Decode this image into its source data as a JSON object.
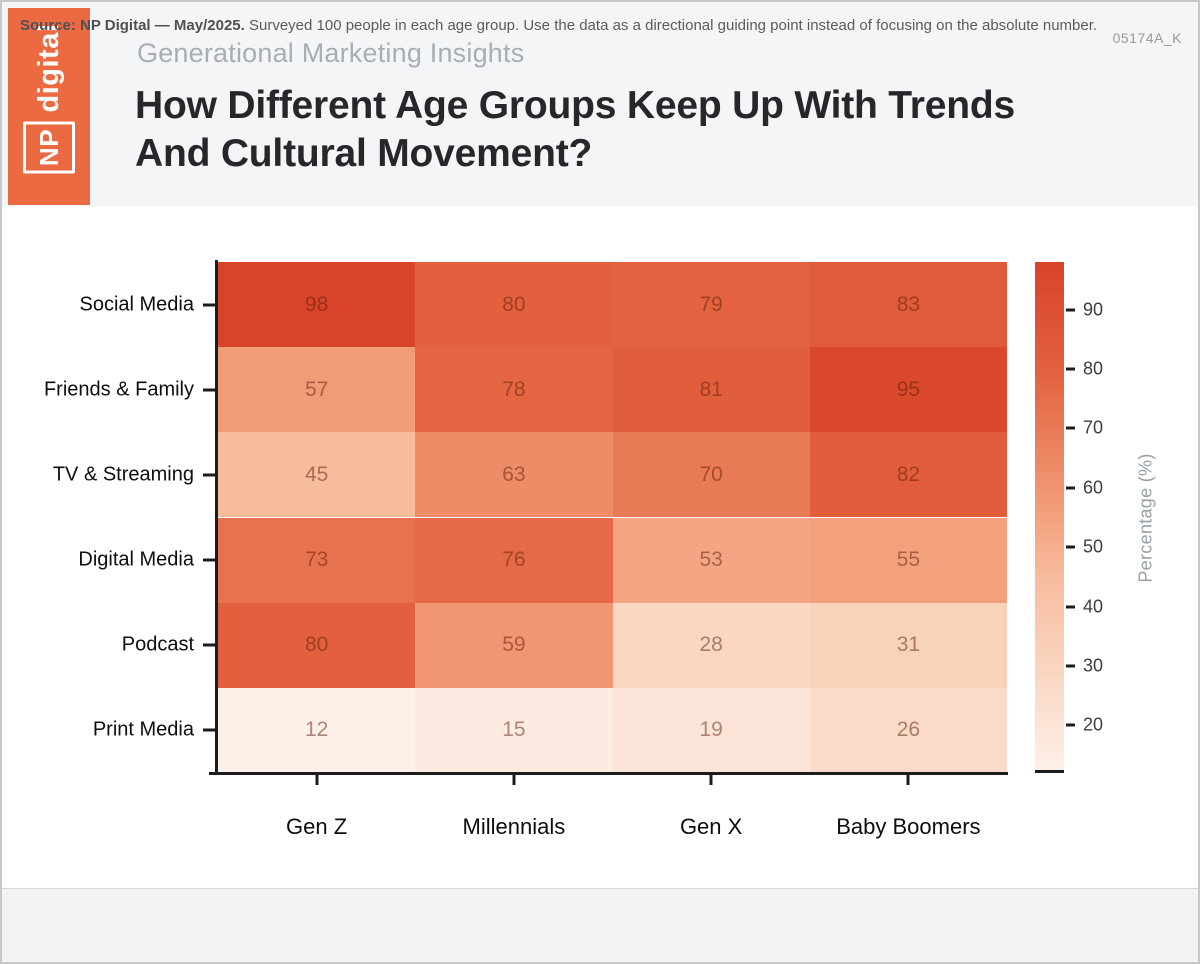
{
  "logo": {
    "np": "NP",
    "digital": "digital"
  },
  "header": {
    "eyebrow": "Generational Marketing Insights",
    "title": "How Different Age Groups Keep Up With Trends\nAnd Cultural Movement?"
  },
  "chart_data": {
    "type": "heatmap",
    "title": "How Different Age Groups Keep Up With Trends And Cultural Movement?",
    "rows": [
      "Social Media",
      "Friends & Family",
      "TV & Streaming",
      "Digital Media",
      "Podcast",
      "Print Media"
    ],
    "columns": [
      "Gen Z",
      "Millennials",
      "Gen X",
      "Baby Boomers"
    ],
    "values": [
      [
        98,
        80,
        79,
        83
      ],
      [
        57,
        78,
        81,
        95
      ],
      [
        45,
        63,
        70,
        82
      ],
      [
        73,
        76,
        53,
        55
      ],
      [
        80,
        59,
        28,
        31
      ],
      [
        12,
        15,
        19,
        26
      ]
    ],
    "colorbar": {
      "label": "Percentage (%)",
      "ticks": [
        20,
        30,
        40,
        50,
        60,
        70,
        80,
        90
      ],
      "domain": [
        12,
        98
      ]
    },
    "colorscale": [
      {
        "v": 12,
        "c": "#fdf0e8"
      },
      {
        "v": 28,
        "c": "#fad7c3"
      },
      {
        "v": 45,
        "c": "#f7bb9d"
      },
      {
        "v": 57,
        "c": "#f29b77"
      },
      {
        "v": 80,
        "c": "#e2603d"
      },
      {
        "v": 98,
        "c": "#d8432a"
      }
    ],
    "cell_text_blend": "#601c08",
    "grid": false,
    "legend_position": "right"
  },
  "footer": {
    "source_bold": "Source: NP Digital — May/2025.",
    "source_rest": " Surveyed 100 people in each age group. Use the data as a directional guiding point instead of focusing on the absolute number.",
    "code": "05174A_K"
  },
  "colors": {
    "brand_orange": "#ec6a41",
    "header_bg": "#f4f5f7",
    "title_text": "#25272b",
    "eyebrow_text": "#a8aeb5",
    "axis_black": "#1c1c1c",
    "footer_bg": "#f2f3f3",
    "heat_max": "#d8432a",
    "heat_min": "#fdf0e8"
  }
}
